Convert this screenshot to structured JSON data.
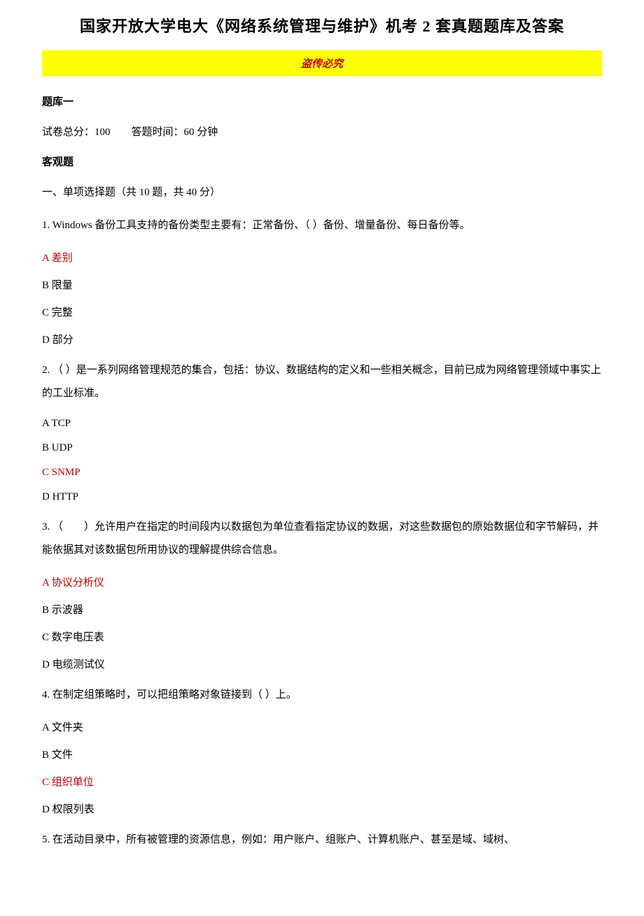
{
  "colors": {
    "text": "#000000",
    "answer": "#c00000",
    "highlight_bg": "#ffff00",
    "background": "#ffffff"
  },
  "typography": {
    "title_fontsize": 22,
    "body_fontsize": 15,
    "line_height": 2.2
  },
  "title": "国家开放大学电大《网络系统管理与维护》机考 2 套真题题库及答案",
  "warning": "盗传必究",
  "bank_label": "题库一",
  "score_info": {
    "total_label": "试卷总分：",
    "total_value": "100",
    "time_label": "答题时间：",
    "time_value": "60 分钟"
  },
  "objective_label": "客观题",
  "section1_heading": "一、单项选择题（共 10 题，共 40 分）",
  "questions": [
    {
      "number": "1.",
      "text": "Windows 备份工具支持的备份类型主要有：正常备份、（ ）备份、增量备份、每日备份等。",
      "options": [
        {
          "label": "A 差别",
          "is_answer": true
        },
        {
          "label": "B 限量",
          "is_answer": false
        },
        {
          "label": "C 完整",
          "is_answer": false
        },
        {
          "label": "D 部分",
          "is_answer": false
        }
      ]
    },
    {
      "number": "2.",
      "text": "（ ）是一系列网络管理规范的集合，包括：协议、数据结构的定义和一些相关概念，目前已成为网络管理领域中事实上的工业标准。",
      "options": [
        {
          "label": "A TCP",
          "is_answer": false
        },
        {
          "label": "B UDP",
          "is_answer": false
        },
        {
          "label": "C SNMP",
          "is_answer": true
        },
        {
          "label": "D HTTP",
          "is_answer": false
        }
      ]
    },
    {
      "number": "3.",
      "text": "（　　）允许用户在指定的时间段内以数据包为单位查看指定协议的数据，对这些数据包的原始数据位和字节解码，并能依据其对该数据包所用协议的理解提供综合信息。",
      "options": [
        {
          "label": "A 协议分析仪",
          "is_answer": true
        },
        {
          "label": "B 示波器",
          "is_answer": false
        },
        {
          "label": "C 数字电压表",
          "is_answer": false
        },
        {
          "label": "D 电缆测试仪",
          "is_answer": false
        }
      ]
    },
    {
      "number": "4.",
      "text": "在制定组策略时，可以把组策略对象链接到（ ）上。",
      "options": [
        {
          "label": "A 文件夹",
          "is_answer": false
        },
        {
          "label": "B 文件",
          "is_answer": false
        },
        {
          "label": "C 组织单位",
          "is_answer": true
        },
        {
          "label": "D 权限列表",
          "is_answer": false
        }
      ]
    },
    {
      "number": "5.",
      "text": "在活动目录中，所有被管理的资源信息，例如：用户账户、组账户、计算机账户、甚至是域、域树、",
      "options": []
    }
  ]
}
